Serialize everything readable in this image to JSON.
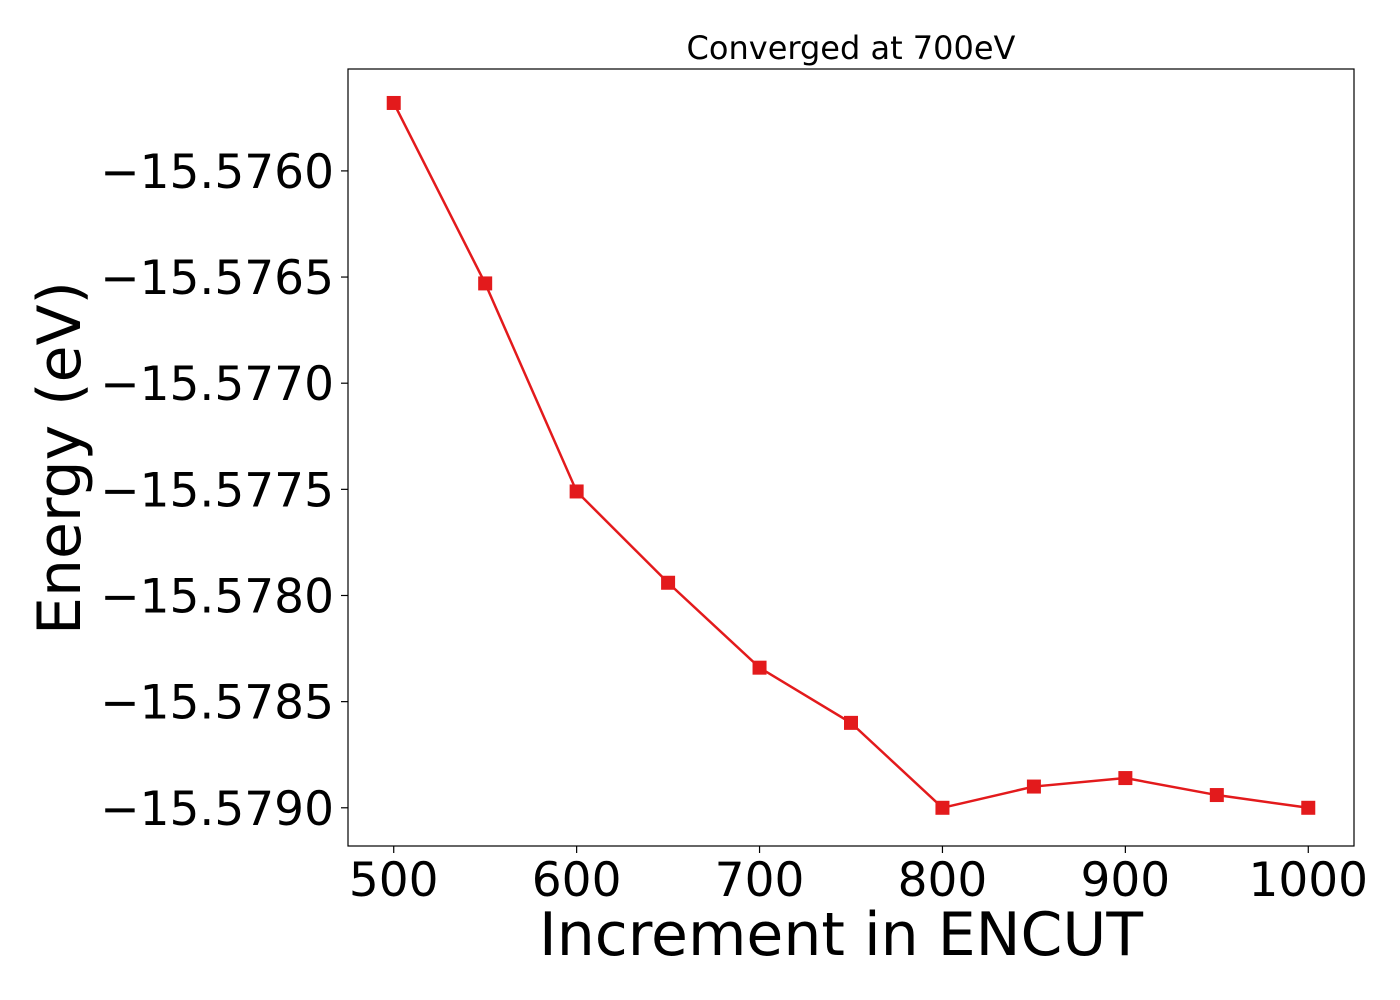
{
  "chart_data": {
    "type": "line",
    "title": "Converged at 700eV",
    "xlabel": "Increment in ENCUT",
    "ylabel": "Energy (eV)",
    "xlim": [
      475,
      1025
    ],
    "ylim": [
      -15.57918,
      -15.57552
    ],
    "xticks": [
      500,
      600,
      700,
      800,
      900,
      1000
    ],
    "xtick_labels": [
      "500",
      "600",
      "700",
      "800",
      "900",
      "1000"
    ],
    "yticks": [
      -15.576,
      -15.5765,
      -15.577,
      -15.5775,
      -15.578,
      -15.5785,
      -15.579
    ],
    "ytick_labels": [
      "−15.5760",
      "−15.5765",
      "−15.5770",
      "−15.5775",
      "−15.5780",
      "−15.5785",
      "−15.5790"
    ],
    "grid": false,
    "series": [
      {
        "color": "#e31a1c",
        "marker": "square",
        "x": [
          500,
          550,
          600,
          650,
          700,
          750,
          800,
          850,
          900,
          950,
          1000
        ],
        "y": [
          -15.57568,
          -15.57653,
          -15.57751,
          -15.57794,
          -15.57834,
          -15.5786,
          -15.579,
          -15.5789,
          -15.57886,
          -15.57894,
          -15.579
        ]
      }
    ]
  }
}
